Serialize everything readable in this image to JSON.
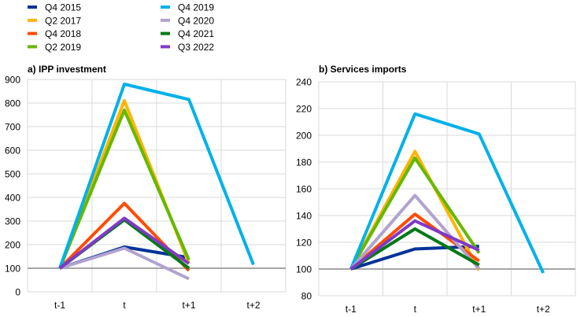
{
  "legend": [
    {
      "name": "Q4 2015",
      "color": "#003299"
    },
    {
      "name": "Q2 2017",
      "color": "#FFB400"
    },
    {
      "name": "Q4 2018",
      "color": "#FF4B00"
    },
    {
      "name": "Q2 2019",
      "color": "#65B800"
    },
    {
      "name": "Q4 2019",
      "color": "#00B1EA"
    },
    {
      "name": "Q4 2020",
      "color": "#B1A2CF"
    },
    {
      "name": "Q4 2021",
      "color": "#007816"
    },
    {
      "name": "Q3 2022",
      "color": "#8139C6"
    }
  ],
  "chart_data": [
    {
      "type": "line",
      "title": "a) IPP investment",
      "categories": [
        "t-1",
        "t",
        "t+1",
        "t+2"
      ],
      "ylim": [
        0,
        900
      ],
      "yticks": [
        0,
        100,
        200,
        300,
        400,
        500,
        600,
        700,
        800,
        900
      ],
      "reference_line": 100,
      "grid": true,
      "legend_position": "top",
      "series": [
        {
          "name": "Q4 2015",
          "values": [
            100,
            190,
            145,
            null
          ]
        },
        {
          "name": "Q2 2017",
          "values": [
            100,
            810,
            120,
            null
          ]
        },
        {
          "name": "Q4 2018",
          "values": [
            100,
            375,
            90,
            null
          ]
        },
        {
          "name": "Q2 2019",
          "values": [
            100,
            770,
            135,
            null
          ]
        },
        {
          "name": "Q4 2019",
          "values": [
            100,
            880,
            815,
            115
          ]
        },
        {
          "name": "Q4 2020",
          "values": [
            100,
            185,
            55,
            null
          ]
        },
        {
          "name": "Q4 2021",
          "values": [
            100,
            305,
            100,
            null
          ]
        },
        {
          "name": "Q3 2022",
          "values": [
            100,
            312,
            120,
            null
          ]
        }
      ]
    },
    {
      "type": "line",
      "title": "b) Services imports",
      "categories": [
        "t-1",
        "t",
        "t+1",
        "t+2"
      ],
      "ylim": [
        80,
        240
      ],
      "yticks": [
        80,
        100,
        120,
        140,
        160,
        180,
        200,
        220,
        240
      ],
      "reference_line": 100,
      "grid": true,
      "legend_position": "top",
      "series": [
        {
          "name": "Q4 2015",
          "values": [
            100,
            115,
            117,
            null
          ]
        },
        {
          "name": "Q2 2017",
          "values": [
            100,
            188,
            99,
            null
          ]
        },
        {
          "name": "Q4 2018",
          "values": [
            100,
            141,
            106,
            null
          ]
        },
        {
          "name": "Q2 2019",
          "values": [
            100,
            183,
            112,
            null
          ]
        },
        {
          "name": "Q4 2019",
          "values": [
            100,
            216,
            201,
            97
          ]
        },
        {
          "name": "Q4 2020",
          "values": [
            100,
            155,
            100,
            null
          ]
        },
        {
          "name": "Q4 2021",
          "values": [
            100,
            130,
            103,
            null
          ]
        },
        {
          "name": "Q3 2022",
          "values": [
            100,
            136,
            114,
            null
          ]
        }
      ]
    }
  ]
}
